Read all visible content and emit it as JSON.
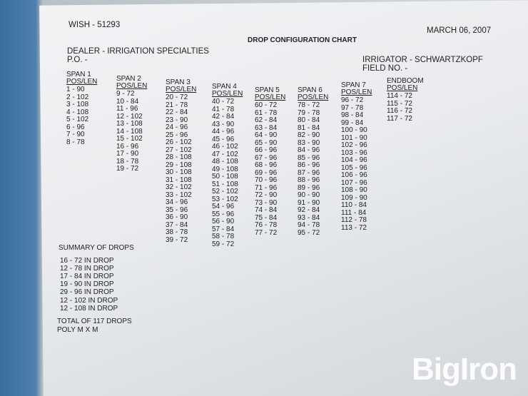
{
  "header": {
    "id": "WISH - 51293",
    "date": "MARCH 06, 2007",
    "title": "DROP CONFIGURATION CHART",
    "dealer": "DEALER - IRRIGATION SPECIALTIES",
    "po": "P.O. -",
    "irrigator": "IRRIGATOR - SCHWARTZKOPF",
    "field": "FIELD NO. -"
  },
  "spans": [
    {
      "title": "SPAN 1",
      "header": "POS/LEN",
      "rows": [
        "1 - 90",
        "2 - 102",
        "3 - 108",
        "4 - 108",
        "5 - 102",
        "6 - 96",
        "7 - 90",
        "8 - 78"
      ]
    },
    {
      "title": "SPAN 2",
      "header": "POS/LEN",
      "rows": [
        "9 - 72",
        "10 - 84",
        "11 - 96",
        "12 - 102",
        "13 - 108",
        "14 - 108",
        "15 - 102",
        "16 - 96",
        "17 - 90",
        "18 - 78",
        "19 - 72"
      ]
    },
    {
      "title": "SPAN 3",
      "header": "POS/LEN",
      "rows": [
        "20 - 72",
        "21 - 78",
        "22 - 84",
        "23 - 90",
        "24 - 96",
        "25 - 96",
        "26 - 102",
        "27 - 102",
        "28 - 108",
        "29 - 108",
        "30 - 108",
        "31 - 108",
        "32 - 102",
        "33 - 102",
        "34 - 96",
        "35 - 96",
        "36 - 90",
        "37 - 84",
        "38 - 78",
        "39 - 72"
      ]
    },
    {
      "title": "SPAN 4",
      "header": "POS/LEN",
      "rows": [
        "40 - 72",
        "41 - 78",
        "42 - 84",
        "43 - 90",
        "44 - 96",
        "45 - 96",
        "46 - 102",
        "47 - 102",
        "48 - 108",
        "49 - 108",
        "50 - 108",
        "51 - 108",
        "52 - 102",
        "53 - 102",
        "54 - 96",
        "55 - 96",
        "56 - 90",
        "57 - 84",
        "58 - 78",
        "59 - 72"
      ]
    },
    {
      "title": "SPAN 5",
      "header": "POS/LEN",
      "rows": [
        "60 - 72",
        "61 - 78",
        "62 - 84",
        "63 - 84",
        "64 - 90",
        "65 - 90",
        "66 - 96",
        "67 - 96",
        "68 - 96",
        "69 - 96",
        "70 - 96",
        "71 - 96",
        "72 - 90",
        "73 - 90",
        "74 - 84",
        "75 - 84",
        "76 - 78",
        "77 - 72"
      ]
    },
    {
      "title": "SPAN 6",
      "header": "POS/LEN",
      "rows": [
        "78 - 72",
        "79 - 78",
        "80 - 84",
        "81 - 84",
        "82 - 90",
        "83 - 90",
        "84 - 96",
        "85 - 96",
        "86 - 96",
        "87 - 96",
        "88 - 96",
        "89 - 96",
        "90 - 90",
        "91 - 90",
        "92 - 84",
        "93 - 84",
        "94 - 78",
        "95 - 72"
      ]
    },
    {
      "title": "SPAN 7",
      "header": "POS/LEN",
      "rows": [
        "96 - 72",
        "97 - 78",
        "98 - 84",
        "99 - 84",
        "100 - 90",
        "101 - 90",
        "102 - 96",
        "103 - 96",
        "104 - 96",
        "105 - 96",
        "106 - 96",
        "107 - 96",
        "108 - 90",
        "109 - 90",
        "110 - 84",
        "111 - 84",
        "112 - 78",
        "113 - 72"
      ]
    },
    {
      "title": "ENDBOOM",
      "header": "POS/LEN",
      "rows": [
        "114 - 72",
        "115 - 72",
        "116 - 72",
        "117 - 72"
      ]
    }
  ],
  "summary": {
    "title": "SUMMARY OF DROPS",
    "rows": [
      "16 - 72 IN DROP",
      "12 - 78 IN DROP",
      "17 - 84 IN DROP",
      "19 - 90 IN DROP",
      "29 - 96 IN DROP",
      "12 - 102 IN DROP",
      "12 - 108 IN DROP"
    ],
    "total": "TOTAL OF 117 DROPS",
    "poly": "POLY M X M"
  },
  "watermark": "BigIron"
}
